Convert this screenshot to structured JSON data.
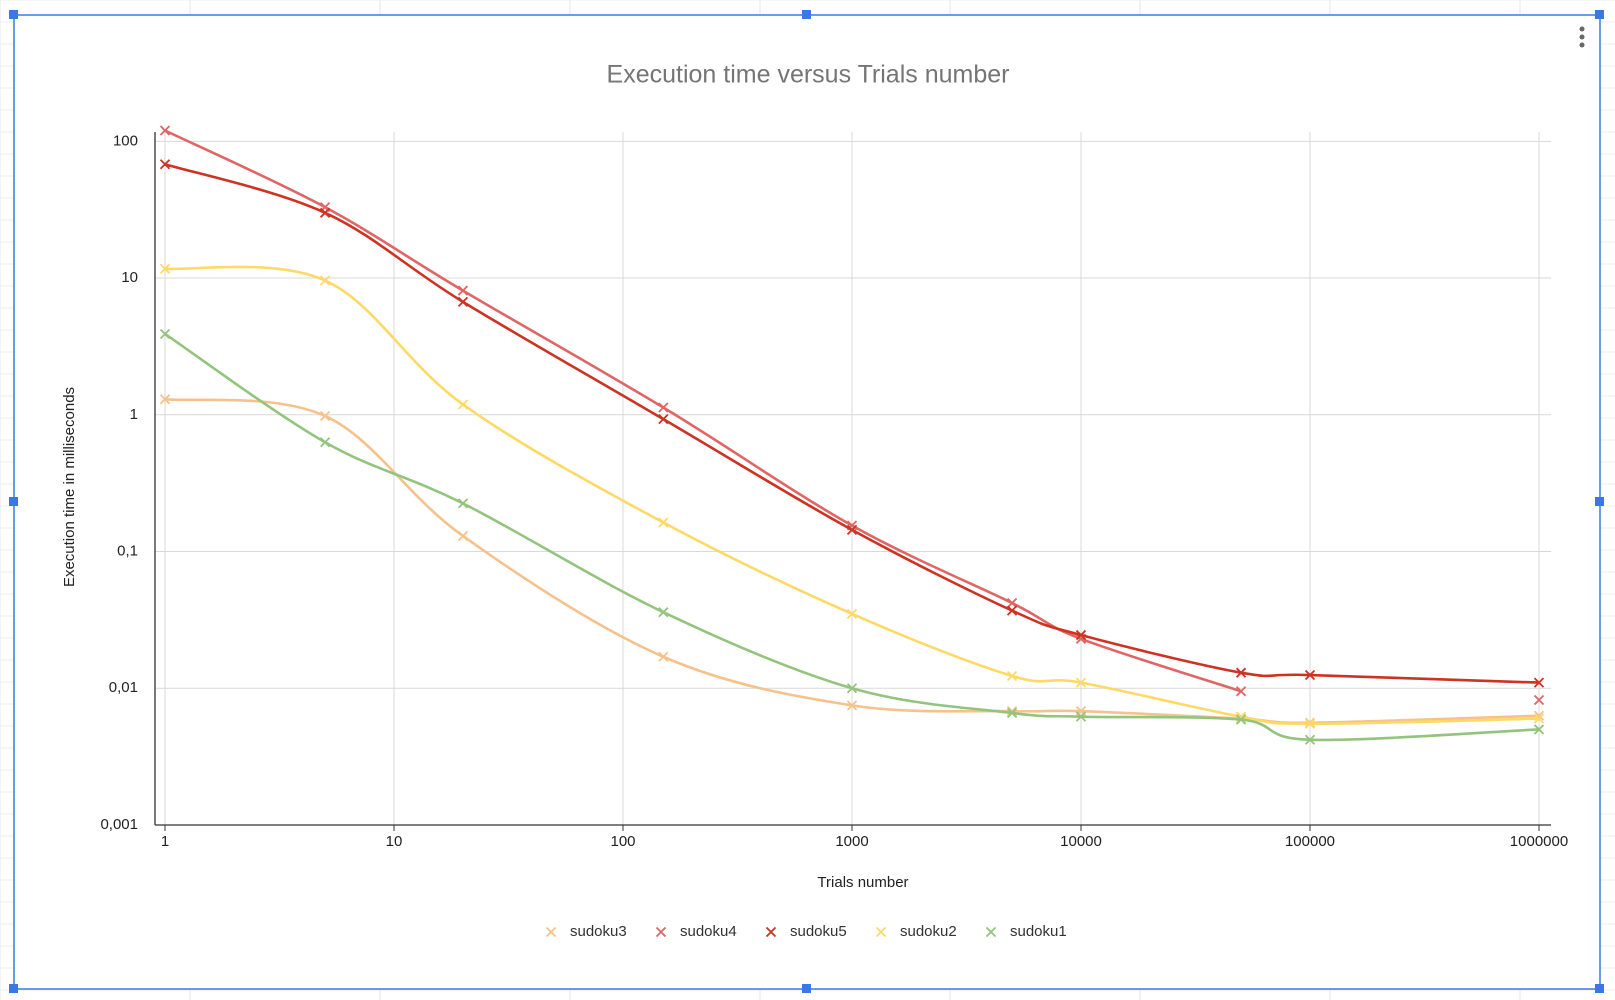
{
  "chart_data": {
    "type": "line",
    "title": "Execution time versus Trials number",
    "x_label": "Trials number",
    "y_label": "Execution time in milliseconds",
    "x": [
      1,
      5,
      20,
      150,
      1000,
      5000,
      10000,
      50000,
      100000,
      1000000
    ],
    "series": [
      {
        "name": "sudoku3",
        "color": "#f6c28b",
        "values": [
          1.3,
          0.98,
          0.13,
          0.017,
          0.0075,
          0.0068,
          0.0068,
          0.006,
          0.0056,
          0.0063
        ]
      },
      {
        "name": "sudoku4",
        "color": "#e06666",
        "values": [
          120,
          33,
          8.1,
          1.13,
          0.155,
          0.042,
          0.023,
          0.0095,
          null,
          0.0082
        ]
      },
      {
        "name": "sudoku5",
        "color": "#cc3322",
        "values": [
          68,
          30,
          6.7,
          0.93,
          0.144,
          0.037,
          0.0245,
          0.013,
          0.0125,
          0.011
        ]
      },
      {
        "name": "sudoku2",
        "color": "#ffd966",
        "values": [
          11.7,
          9.6,
          1.19,
          0.163,
          0.035,
          0.0123,
          0.011,
          0.0062,
          0.0055,
          0.006
        ]
      },
      {
        "name": "sudoku1",
        "color": "#93c47d",
        "values": [
          3.9,
          0.63,
          0.225,
          0.036,
          0.01,
          0.0066,
          0.0062,
          0.0059,
          0.0042,
          0.005
        ]
      }
    ],
    "x_log": true,
    "y_log": true,
    "xlim": [
      1,
      1000000
    ],
    "ylim": [
      0.001,
      117
    ],
    "xticks": [
      1,
      10,
      100,
      1000,
      10000,
      100000,
      1000000
    ],
    "yticks": [
      100,
      10,
      1,
      {
        "value": 0.1,
        "label": "0,1"
      },
      {
        "value": 0.01,
        "label": "0,01"
      },
      {
        "value": 0.001,
        "label": "0,001"
      }
    ],
    "grid": true,
    "legend": "bottom"
  }
}
